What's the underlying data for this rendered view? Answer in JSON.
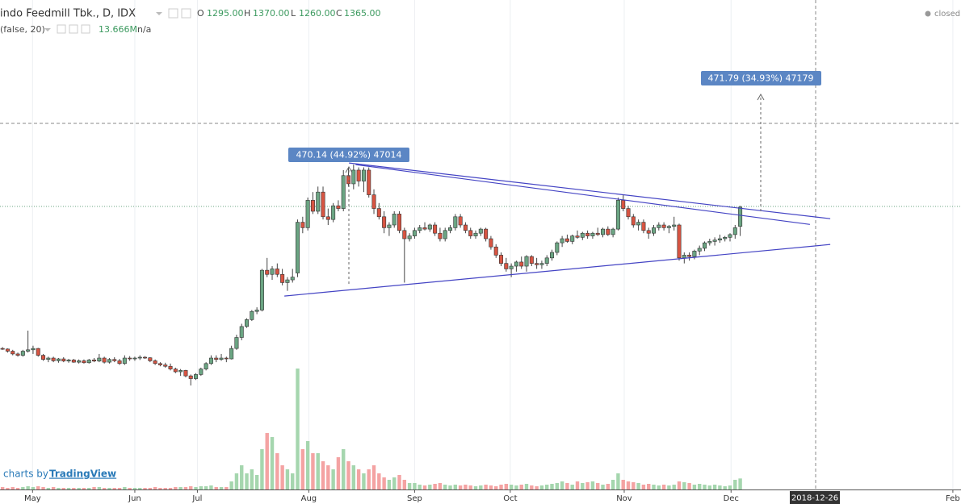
{
  "header": {
    "symbol": "indo Feedmill Tbk., D, IDX",
    "o_label": "O",
    "o_value": "1295.00",
    "h_label": "H",
    "h_value": "1370.00",
    "l_label": "L",
    "l_value": "1260.00",
    "c_label": "C",
    "c_value": "1365.00",
    "volume_params": "(false, 20)",
    "volume_value": "13.666M",
    "volume_ma": "n/a",
    "status": "closed"
  },
  "footer": {
    "prefix": "charts by",
    "brand": "TradingView"
  },
  "chart_data": {
    "type": "candlestick",
    "up_color": "#6ba583",
    "down_color": "#d75442",
    "volume_up_color": "#a5d6ae",
    "volume_down_color": "#f4a3a3",
    "xlim": [
      -0.5,
      188.4
    ],
    "xticks": [
      {
        "value": 5.9,
        "label": "May"
      },
      {
        "value": 26,
        "label": "Jun"
      },
      {
        "value": 38.3,
        "label": "Jul"
      },
      {
        "value": 60.2,
        "label": "Aug"
      },
      {
        "value": 81,
        "label": "Sep"
      },
      {
        "value": 99.8,
        "label": "Oct"
      },
      {
        "value": 122.2,
        "label": "Nov"
      },
      {
        "value": 143.2,
        "label": "Dec"
      },
      {
        "value": 186.8,
        "label": "Feb"
      }
    ],
    "crosshair_label": "2018-12-26",
    "ylim": [
      336,
      2120
    ],
    "volume_lim": [
      0,
      200
    ],
    "open": [
      850,
      848,
      840,
      830,
      825,
      840,
      845,
      850,
      825,
      810,
      815,
      805,
      812,
      804,
      808,
      800,
      805,
      798,
      808,
      804,
      815,
      800,
      810,
      805,
      795,
      815,
      812,
      815,
      818,
      816,
      805,
      795,
      790,
      785,
      775,
      765,
      770,
      750,
      740,
      755,
      775,
      795,
      815,
      810,
      815,
      812,
      850,
      890,
      930,
      955,
      985,
      990,
      1135,
      1120,
      1140,
      1120,
      1090,
      1100,
      1125,
      1310,
      1290,
      1390,
      1350,
      1420,
      1330,
      1320,
      1370,
      1360,
      1480,
      1450,
      1500,
      1460,
      1500,
      1410,
      1360,
      1330,
      1290,
      1300,
      1340,
      1280,
      1250,
      1260,
      1280,
      1290,
      1285,
      1300,
      1270,
      1250,
      1280,
      1290,
      1330,
      1300,
      1280,
      1260,
      1270,
      1285,
      1250,
      1220,
      1190,
      1160,
      1140,
      1150,
      1165,
      1150,
      1185,
      1160,
      1155,
      1160,
      1180,
      1200,
      1235,
      1250,
      1240,
      1260,
      1255,
      1270,
      1260,
      1270,
      1265,
      1285,
      1265,
      1285,
      1390,
      1360,
      1330,
      1300,
      1310,
      1280,
      1270,
      1290,
      1300,
      1290,
      1295,
      1300,
      1180,
      1190,
      1185,
      1205,
      1215,
      1235,
      1240,
      1245,
      1250,
      1255,
      1265,
      1295
    ],
    "high": [
      855,
      850,
      845,
      835,
      845,
      915,
      860,
      852,
      830,
      820,
      820,
      815,
      818,
      812,
      812,
      810,
      810,
      812,
      815,
      830,
      820,
      815,
      818,
      812,
      825,
      822,
      820,
      825,
      822,
      818,
      810,
      800,
      798,
      795,
      780,
      775,
      772,
      755,
      760,
      780,
      800,
      825,
      825,
      830,
      820,
      860,
      900,
      940,
      960,
      990,
      1000,
      1140,
      1180,
      1150,
      1160,
      1140,
      1110,
      1140,
      1320,
      1330,
      1400,
      1420,
      1440,
      1440,
      1360,
      1380,
      1390,
      1500,
      1510,
      1520,
      1510,
      1510,
      1510,
      1430,
      1380,
      1350,
      1310,
      1350,
      1350,
      1290,
      1270,
      1290,
      1300,
      1310,
      1305,
      1310,
      1290,
      1290,
      1300,
      1340,
      1340,
      1310,
      1290,
      1280,
      1290,
      1290,
      1260,
      1230,
      1200,
      1180,
      1160,
      1170,
      1185,
      1190,
      1190,
      1180,
      1170,
      1190,
      1210,
      1240,
      1260,
      1265,
      1265,
      1280,
      1275,
      1280,
      1275,
      1290,
      1290,
      1295,
      1290,
      1400,
      1410,
      1370,
      1340,
      1320,
      1320,
      1290,
      1300,
      1310,
      1310,
      1300,
      1330,
      1305,
      1200,
      1200,
      1210,
      1225,
      1240,
      1250,
      1255,
      1265,
      1260,
      1270,
      1300,
      1370
    ],
    "low": [
      845,
      835,
      825,
      820,
      820,
      835,
      830,
      820,
      805,
      800,
      800,
      798,
      800,
      798,
      798,
      795,
      795,
      795,
      800,
      800,
      795,
      795,
      800,
      790,
      790,
      805,
      805,
      808,
      812,
      800,
      790,
      785,
      780,
      770,
      760,
      750,
      745,
      715,
      735,
      750,
      770,
      790,
      800,
      805,
      800,
      810,
      845,
      880,
      925,
      950,
      975,
      985,
      1110,
      1100,
      1110,
      1080,
      1060,
      1090,
      1110,
      1270,
      1280,
      1340,
      1340,
      1320,
      1300,
      1310,
      1350,
      1350,
      1440,
      1430,
      1440,
      1420,
      1400,
      1340,
      1320,
      1270,
      1260,
      1290,
      1270,
      1090,
      1240,
      1250,
      1270,
      1280,
      1275,
      1260,
      1240,
      1240,
      1270,
      1280,
      1290,
      1270,
      1250,
      1250,
      1260,
      1240,
      1210,
      1180,
      1150,
      1130,
      1110,
      1130,
      1140,
      1130,
      1150,
      1140,
      1140,
      1150,
      1170,
      1190,
      1220,
      1235,
      1230,
      1250,
      1245,
      1250,
      1250,
      1260,
      1255,
      1260,
      1255,
      1280,
      1350,
      1320,
      1290,
      1280,
      1270,
      1250,
      1260,
      1280,
      1280,
      1270,
      1280,
      1170,
      1160,
      1170,
      1175,
      1190,
      1205,
      1225,
      1225,
      1235,
      1240,
      1240,
      1250,
      1260
    ],
    "close": [
      848,
      840,
      830,
      825,
      840,
      845,
      850,
      825,
      810,
      815,
      805,
      812,
      804,
      808,
      800,
      805,
      798,
      808,
      804,
      815,
      800,
      810,
      805,
      795,
      815,
      812,
      815,
      818,
      816,
      805,
      795,
      790,
      785,
      775,
      765,
      770,
      750,
      740,
      755,
      775,
      795,
      815,
      810,
      815,
      812,
      850,
      890,
      930,
      955,
      985,
      990,
      1135,
      1120,
      1140,
      1120,
      1090,
      1100,
      1110,
      1310,
      1290,
      1390,
      1350,
      1420,
      1330,
      1320,
      1370,
      1360,
      1480,
      1450,
      1500,
      1460,
      1500,
      1410,
      1360,
      1330,
      1290,
      1300,
      1340,
      1280,
      1250,
      1260,
      1280,
      1290,
      1285,
      1300,
      1270,
      1250,
      1280,
      1290,
      1330,
      1300,
      1280,
      1260,
      1270,
      1285,
      1250,
      1220,
      1190,
      1160,
      1140,
      1150,
      1165,
      1150,
      1185,
      1160,
      1155,
      1160,
      1180,
      1200,
      1235,
      1250,
      1240,
      1260,
      1255,
      1270,
      1260,
      1270,
      1265,
      1285,
      1265,
      1285,
      1390,
      1360,
      1330,
      1300,
      1310,
      1280,
      1270,
      1290,
      1300,
      1290,
      1295,
      1300,
      1180,
      1190,
      1185,
      1205,
      1215,
      1235,
      1240,
      1245,
      1250,
      1255,
      1265,
      1290,
      1365
    ],
    "volume": [
      3,
      2,
      3,
      2,
      3,
      4,
      3,
      4,
      3,
      2,
      3,
      2,
      2,
      2,
      2,
      2,
      2,
      2,
      3,
      3,
      2,
      2,
      2,
      2,
      3,
      2,
      2,
      2,
      2,
      2,
      3,
      2,
      2,
      2,
      3,
      3,
      3,
      4,
      3,
      4,
      4,
      5,
      3,
      3,
      3,
      10,
      20,
      30,
      20,
      25,
      18,
      50,
      70,
      65,
      45,
      30,
      25,
      20,
      150,
      50,
      60,
      45,
      45,
      35,
      30,
      25,
      40,
      50,
      35,
      30,
      25,
      20,
      25,
      30,
      20,
      15,
      12,
      15,
      18,
      12,
      8,
      8,
      6,
      5,
      6,
      7,
      8,
      6,
      5,
      6,
      5,
      6,
      5,
      4,
      5,
      6,
      5,
      4,
      6,
      7,
      6,
      5,
      6,
      7,
      5,
      4,
      5,
      6,
      7,
      8,
      10,
      8,
      6,
      10,
      8,
      9,
      10,
      8,
      6,
      7,
      12,
      20,
      12,
      10,
      9,
      8,
      6,
      7,
      6,
      5,
      6,
      5,
      6,
      10,
      9,
      8,
      6,
      7,
      6,
      5,
      6,
      5,
      4,
      5,
      12,
      13.666
    ],
    "trend_color": "#4444c4",
    "trend_lines": [
      {
        "x": [
          68.1,
          162.7
        ],
        "y": [
          1526,
          1323
        ]
      },
      {
        "x": [
          69.4,
          158.7
        ],
        "y": [
          1520,
          1302
        ]
      },
      {
        "x": [
          55.4,
          162.7
        ],
        "y": [
          1041,
          1229
        ]
      }
    ],
    "measures": [
      {
        "label": "470.14 (44.92%) 47014"
      },
      {
        "label": "471.79 (34.93%) 47179"
      }
    ]
  }
}
